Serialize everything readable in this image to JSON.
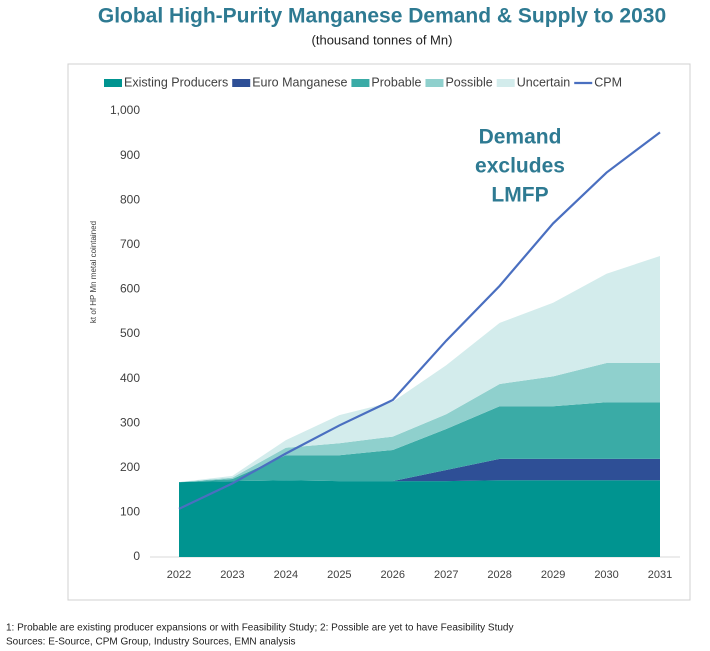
{
  "chart_data": {
    "type": "area",
    "title": "Global High-Purity Manganese Demand & Supply to 2030",
    "subtitle": "(thousand tonnes of Mn)",
    "y_label": "kt of HP Mn metal cointained",
    "annotation": [
      "Demand",
      "excludes",
      "LMFP"
    ],
    "footnotes": [
      "1: Probable  are existing producer expansions or with Feasibility Study; 2: Possible are yet to have Feasibility Study",
      "Sources: E-Source, CPM Group, Industry Sources, EMN analysis"
    ],
    "categories": [
      "2022",
      "2023",
      "2024",
      "2025",
      "2026",
      "2027",
      "2028",
      "2029",
      "2030",
      "2031"
    ],
    "series": [
      {
        "name": "Existing Producers",
        "color": "#009490",
        "values": [
          168,
          170,
          172,
          170,
          170,
          170,
          172,
          172,
          172,
          172
        ]
      },
      {
        "name": "Euro Manganese",
        "color": "#2e4f96",
        "values": [
          0,
          0,
          0,
          0,
          0,
          25,
          48,
          48,
          48,
          48
        ]
      },
      {
        "name": "Probable",
        "color": "#3aaba6",
        "values": [
          0,
          5,
          56,
          58,
          70,
          92,
          118,
          118,
          127,
          127
        ]
      },
      {
        "name": "Possible",
        "color": "#8fd0cd",
        "values": [
          0,
          3,
          17,
          27,
          30,
          33,
          50,
          67,
          88,
          88
        ]
      },
      {
        "name": "Uncertain",
        "color": "#d3ecec",
        "values": [
          0,
          4,
          17,
          63,
          78,
          110,
          137,
          165,
          200,
          240
        ]
      },
      {
        "name": "CPM",
        "color": "#4a6fc0",
        "type": "line",
        "values": [
          108,
          165,
          232,
          295,
          352,
          485,
          608,
          748,
          862,
          952
        ]
      }
    ],
    "ylim": [
      0,
      1000
    ],
    "yticks": [
      0,
      100,
      200,
      300,
      400,
      500,
      600,
      700,
      800,
      900,
      {
        "value": 1000,
        "label": "1,000"
      }
    ],
    "grid": false
  }
}
